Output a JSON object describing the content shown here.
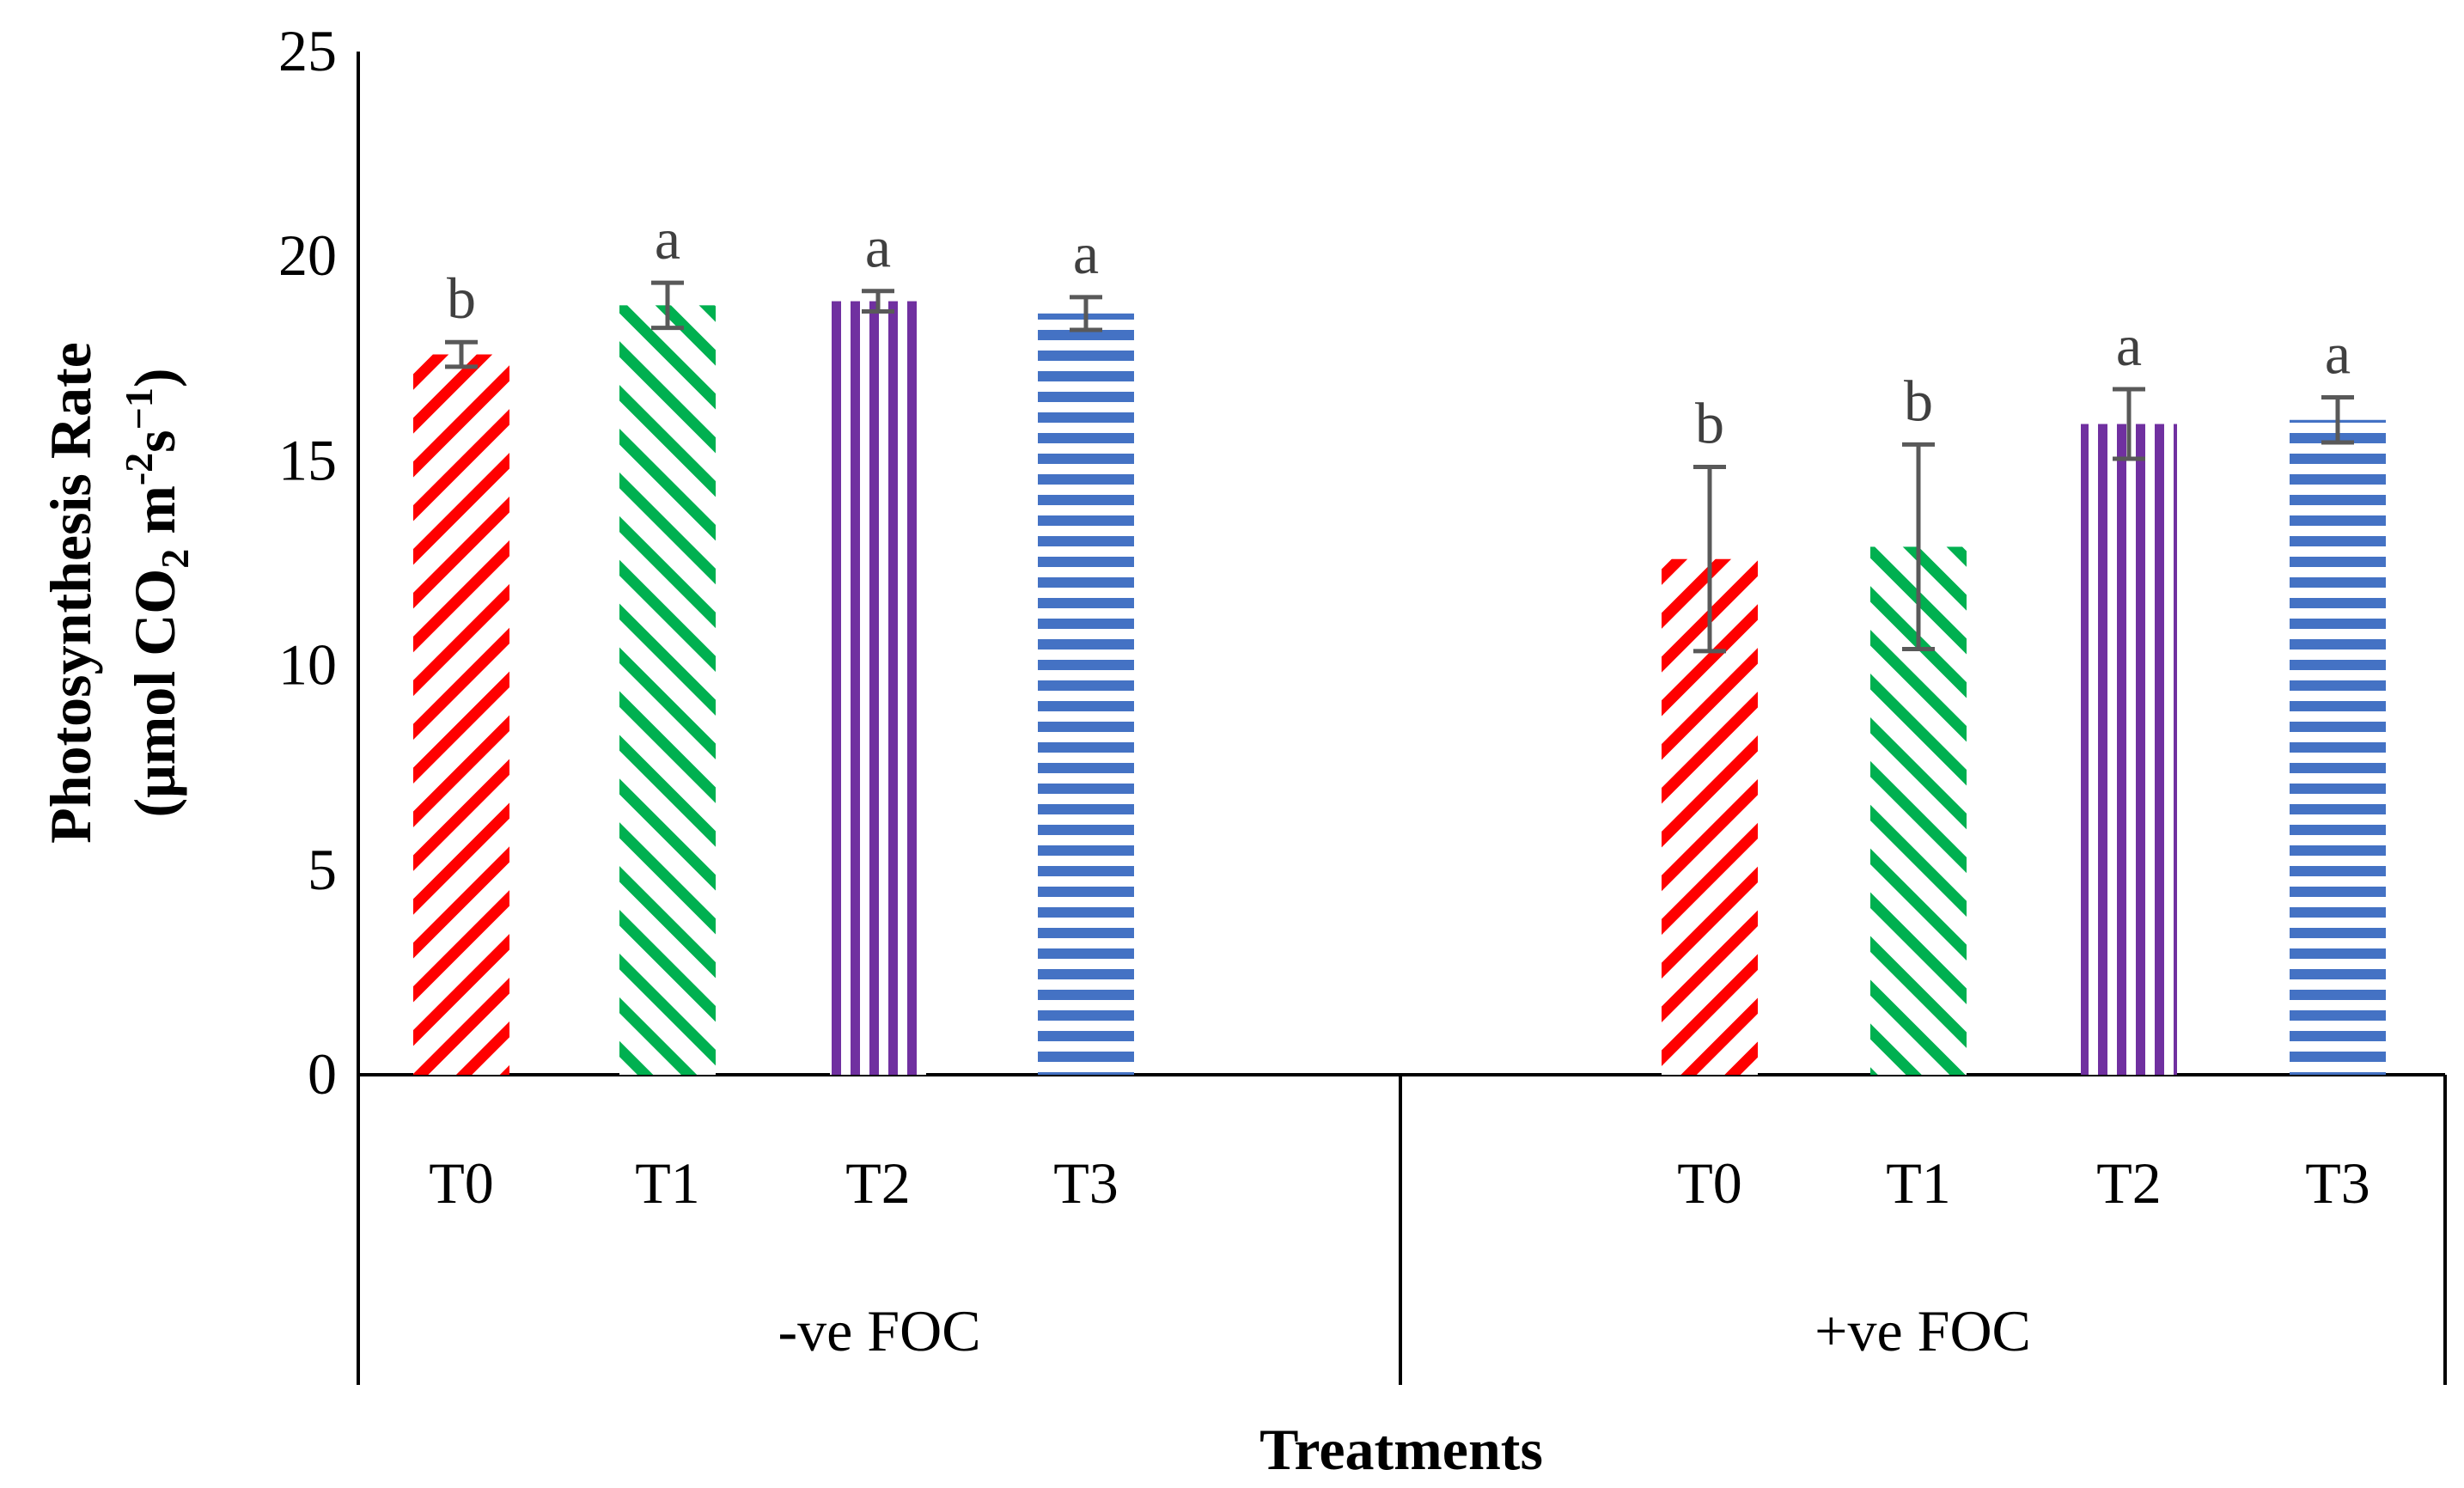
{
  "chart_data": {
    "type": "bar",
    "title": "",
    "xlabel": "Treatments",
    "ylabel": {
      "line1": "Photosynthesis Rate",
      "prefix": "(μmol CO",
      "co2_sub": "2",
      "unit_m": " m",
      "m_exp": "-2",
      "unit_s": "s",
      "s_exp": "−1",
      "suffix": ")"
    },
    "ylim": [
      0,
      25
    ],
    "yticks": [
      "0",
      "5",
      "10",
      "15",
      "20",
      "25"
    ],
    "grid": false,
    "groups": [
      {
        "name": "-ve FOC",
        "bars": [
          {
            "category": "T0",
            "value": 17.6,
            "error": 0.3,
            "letter": "b",
            "pattern": "diag-down",
            "color": "#ff0000"
          },
          {
            "category": "T1",
            "value": 18.8,
            "error": 0.55,
            "letter": "a",
            "pattern": "diag-up",
            "color": "#00b050"
          },
          {
            "category": "T2",
            "value": 18.9,
            "error": 0.25,
            "letter": "a",
            "pattern": "vertical",
            "color": "#7030a0"
          },
          {
            "category": "T3",
            "value": 18.6,
            "error": 0.4,
            "letter": "a",
            "pattern": "horizontal",
            "color": "#4472c4"
          }
        ]
      },
      {
        "name": "+ve FOC",
        "bars": [
          {
            "category": "T0",
            "value": 12.6,
            "error": 2.25,
            "letter": "b",
            "pattern": "diag-down",
            "color": "#ff0000"
          },
          {
            "category": "T1",
            "value": 12.9,
            "error": 2.5,
            "letter": "b",
            "pattern": "diag-up",
            "color": "#00b050"
          },
          {
            "category": "T2",
            "value": 15.9,
            "error": 0.85,
            "letter": "a",
            "pattern": "vertical",
            "color": "#7030a0"
          },
          {
            "category": "T3",
            "value": 16.0,
            "error": 0.55,
            "letter": "a",
            "pattern": "horizontal",
            "color": "#4472c4"
          }
        ]
      }
    ]
  }
}
